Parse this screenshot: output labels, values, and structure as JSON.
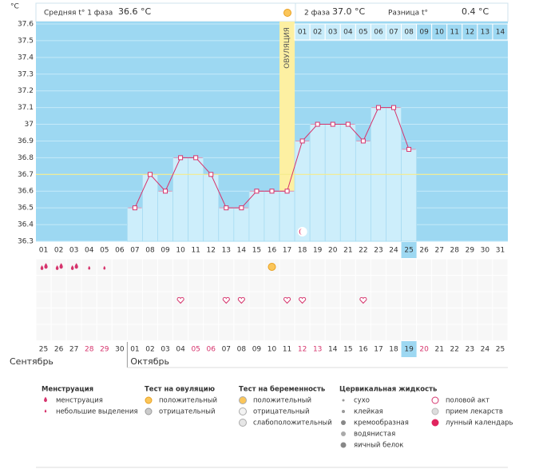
{
  "chart_data": {
    "type": "line",
    "y_unit": "°C",
    "phase1_label": "Средняя t° 1 фаза",
    "phase1_value": "36.6 °C",
    "phase2_label": "2 фаза",
    "phase2_value": "37.0 °C",
    "diff_label": "Разница t°",
    "diff_value": "0.4 °C",
    "ovulation_label": "ОВУЛЯЦИЯ",
    "ovulation_index": 16,
    "categories": [
      "01",
      "02",
      "03",
      "04",
      "05",
      "06",
      "07",
      "08",
      "09",
      "10",
      "11",
      "12",
      "13",
      "14",
      "15",
      "16",
      "17",
      "18",
      "19",
      "20",
      "21",
      "22",
      "23",
      "24",
      "25",
      "26",
      "27",
      "28",
      "29",
      "30",
      "31"
    ],
    "values": [
      null,
      null,
      null,
      null,
      null,
      null,
      36.5,
      36.7,
      36.6,
      36.8,
      36.8,
      36.7,
      36.5,
      36.5,
      36.6,
      36.6,
      36.6,
      36.9,
      37.0,
      37.0,
      37.0,
      36.9,
      37.1,
      37.1,
      36.85,
      null,
      null,
      null,
      null,
      null,
      null
    ],
    "color": "#d6336c",
    "coverline": 36.7,
    "highlight_index": 24,
    "cycle_days": [
      "01",
      "02",
      "03",
      "04",
      "05",
      "06",
      "07",
      "08",
      "09",
      "10",
      "11",
      "12",
      "13",
      "14"
    ],
    "ylim": [
      36.3,
      37.6
    ],
    "yticks": [
      36.3,
      36.4,
      36.5,
      36.6,
      36.7,
      36.8,
      36.9,
      37,
      37.1,
      37.2,
      37.3,
      37.4,
      37.5,
      37.6
    ],
    "grid": true
  },
  "events": {
    "menstruation_heavy": [
      1,
      2,
      3
    ],
    "menstruation_light": [
      4,
      5
    ],
    "ovulation_positive": [
      16
    ],
    "intercourse": [
      10,
      13,
      14,
      17,
      18,
      22
    ],
    "lunar": [
      18
    ]
  },
  "calendar": {
    "dates": [
      "25",
      "26",
      "27",
      "28",
      "29",
      "30",
      "01",
      "02",
      "03",
      "04",
      "05",
      "06",
      "07",
      "08",
      "09",
      "10",
      "11",
      "12",
      "13",
      "14",
      "15",
      "16",
      "17",
      "18",
      "19",
      "20",
      "21",
      "22",
      "23",
      "24",
      "25"
    ],
    "red": [
      3,
      4,
      10,
      11,
      17,
      18,
      25
    ],
    "highlight_index": 24,
    "months": [
      "Сентябрь",
      "Октябрь"
    ]
  },
  "legend": [
    {
      "title": "Менструация",
      "items": [
        "менструация",
        "небольшие выделения"
      ]
    },
    {
      "title": "Тест на овуляцию",
      "items": [
        "положительный",
        "отрицательный"
      ]
    },
    {
      "title": "Тест на беременность",
      "items": [
        "положительный",
        "отрицательный",
        "слабоположительный"
      ]
    },
    {
      "title": "Цервикальная жидкость",
      "items": [
        "сухо",
        "клейкая",
        "кремообразная",
        "водянистая",
        "яичный белок"
      ]
    },
    {
      "items": [
        "половой акт",
        "прием лекарств",
        "лунный календарь"
      ]
    }
  ]
}
